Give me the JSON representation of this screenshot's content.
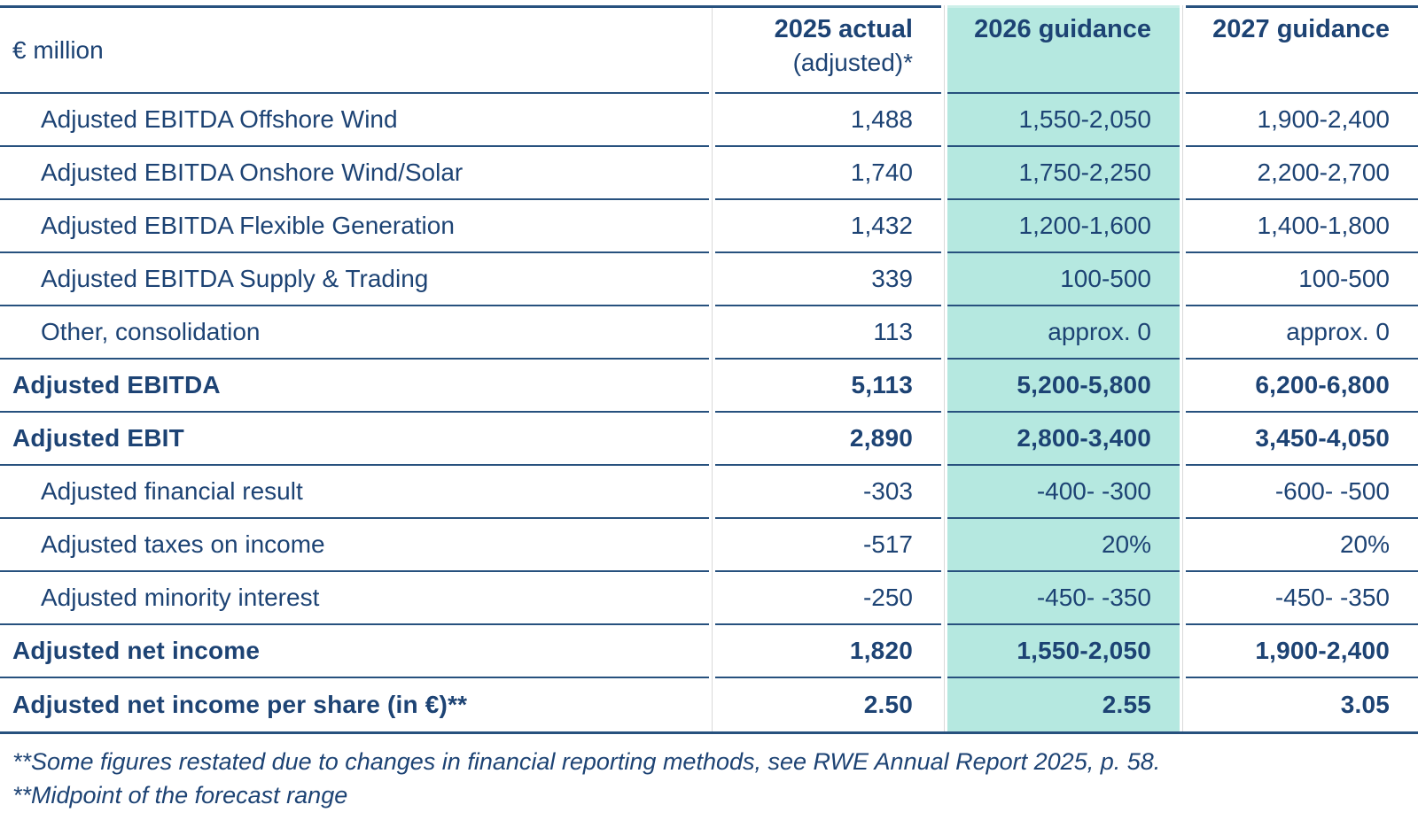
{
  "table": {
    "unit_label": "€ million",
    "columns": [
      {
        "label": "2025 actual",
        "sublabel": "(adjusted)*"
      },
      {
        "label": "2026 guidance",
        "sublabel": ""
      },
      {
        "label": "2027 guidance",
        "sublabel": ""
      }
    ],
    "rows": [
      {
        "label": "Adjusted EBITDA Offshore Wind",
        "indent": true,
        "bold": false,
        "values": [
          "1,488",
          "1,550-2,050",
          "1,900-2,400"
        ]
      },
      {
        "label": "Adjusted EBITDA Onshore Wind/Solar",
        "indent": true,
        "bold": false,
        "values": [
          "1,740",
          "1,750-2,250",
          "2,200-2,700"
        ]
      },
      {
        "label": "Adjusted EBITDA Flexible Generation",
        "indent": true,
        "bold": false,
        "values": [
          "1,432",
          "1,200-1,600",
          "1,400-1,800"
        ]
      },
      {
        "label": "Adjusted EBITDA Supply & Trading",
        "indent": true,
        "bold": false,
        "values": [
          "339",
          "100-500",
          "100-500"
        ]
      },
      {
        "label": "Other, consolidation",
        "indent": true,
        "bold": false,
        "values": [
          "113",
          "approx. 0",
          "approx. 0"
        ]
      },
      {
        "label": "Adjusted EBITDA",
        "indent": false,
        "bold": true,
        "values": [
          "5,113",
          "5,200-5,800",
          "6,200-6,800"
        ]
      },
      {
        "label": "Adjusted EBIT",
        "indent": false,
        "bold": true,
        "values": [
          "2,890",
          "2,800-3,400",
          "3,450-4,050"
        ]
      },
      {
        "label": "Adjusted financial result",
        "indent": true,
        "bold": false,
        "values": [
          "-303",
          "-400- -300",
          "-600- -500"
        ]
      },
      {
        "label": "Adjusted taxes on income",
        "indent": true,
        "bold": false,
        "values": [
          "-517",
          "20%",
          "20%"
        ]
      },
      {
        "label": "Adjusted minority interest",
        "indent": true,
        "bold": false,
        "values": [
          "-250",
          "-450- -350",
          "-450- -350"
        ]
      },
      {
        "label": "Adjusted net income",
        "indent": false,
        "bold": true,
        "values": [
          "1,820",
          "1,550-2,050",
          "1,900-2,400"
        ]
      },
      {
        "label": "Adjusted net income per share (in €)**",
        "indent": false,
        "bold": true,
        "values": [
          "2.50",
          "2.55",
          "3.05"
        ]
      }
    ],
    "footnotes": [
      "**Some figures restated due to changes in financial reporting methods, see RWE Annual Report 2025, p. 58.",
      "**Midpoint of the forecast range"
    ]
  },
  "colors": {
    "text_navy": "#1d4374",
    "border_navy": "#27517e",
    "highlight_teal": "#b5e8e0",
    "divider_gray": "#d9d9d9"
  }
}
